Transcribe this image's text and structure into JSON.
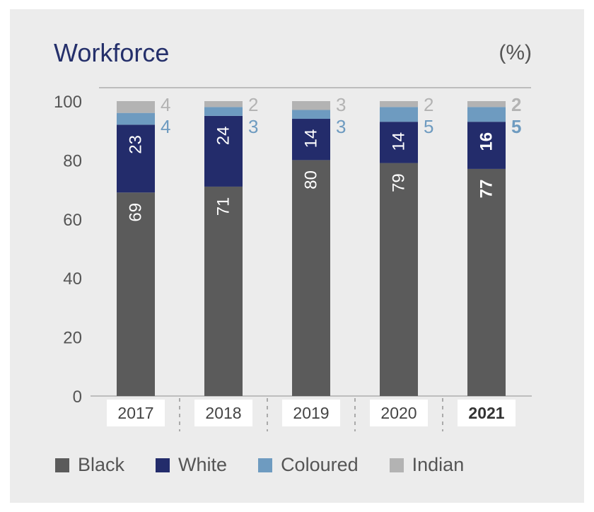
{
  "chart_data": {
    "type": "bar",
    "stacked": true,
    "title": "Workforce",
    "unit": "(%)",
    "categories": [
      "2017",
      "2018",
      "2019",
      "2020",
      "2021"
    ],
    "highlight_category": "2021",
    "ylim": [
      0,
      100
    ],
    "yticks": [
      "0",
      "20",
      "40",
      "60",
      "80",
      "100"
    ],
    "series": [
      {
        "name": "Black",
        "values": [
          69,
          71,
          80,
          79,
          77
        ],
        "color": "#5b5b5b",
        "label_color": "#ffffff"
      },
      {
        "name": "White",
        "values": [
          23,
          24,
          14,
          14,
          16
        ],
        "color": "#232c6b",
        "label_color": "#ffffff"
      },
      {
        "name": "Coloured",
        "values": [
          4,
          3,
          3,
          5,
          5
        ],
        "color": "#6e9bc0",
        "label_color": "#6e9bc0"
      },
      {
        "name": "Indian",
        "values": [
          4,
          2,
          3,
          2,
          2
        ],
        "color": "#b3b3b3",
        "label_color": "#b3b3b3"
      }
    ],
    "legend_position": "bottom"
  }
}
